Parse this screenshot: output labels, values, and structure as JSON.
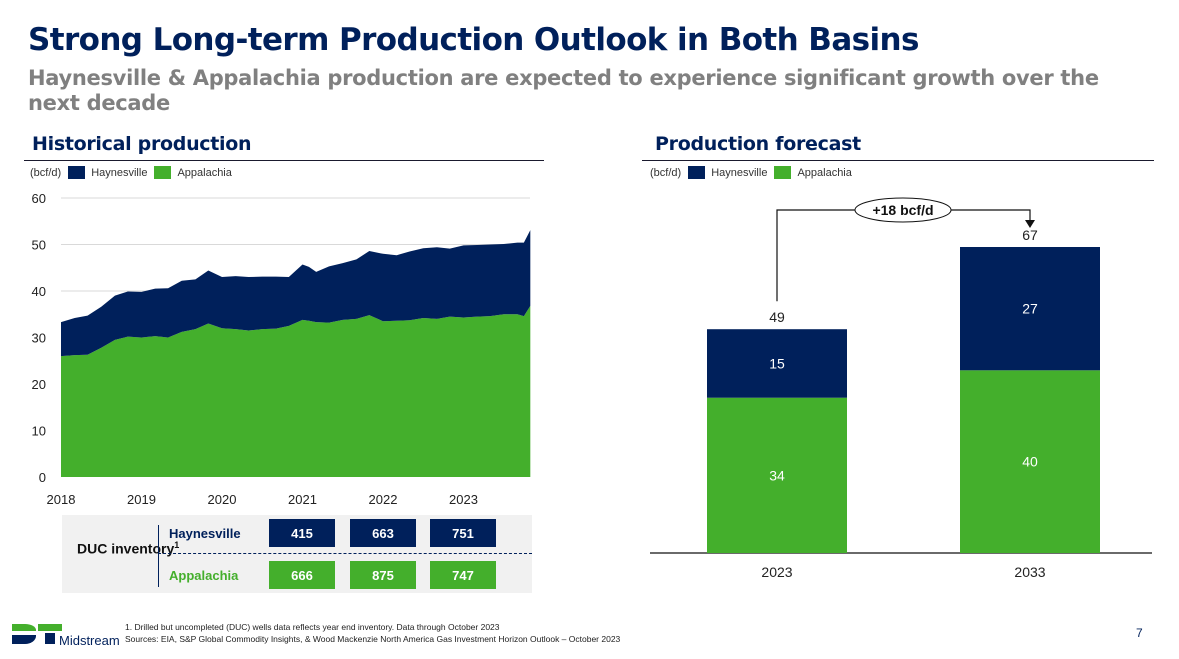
{
  "page": {
    "title": "Strong Long-term Production Outlook in Both Basins",
    "subtitle": "Haynesville & Appalachia production are expected to experience significant growth over the next decade",
    "page_number": "7"
  },
  "colors": {
    "haynesville": "#00205b",
    "appalachia": "#44af2c",
    "title": "#00205b",
    "subtitle": "#808080"
  },
  "legend": {
    "unit": "(bcf/d)",
    "items": [
      {
        "name": "Haynesville",
        "color": "#00205b"
      },
      {
        "name": "Appalachia",
        "color": "#44af2c"
      }
    ]
  },
  "chart_data": [
    {
      "type": "area",
      "title": "Historical production",
      "unit": "(bcf/d)",
      "stacked": true,
      "xlabel": "",
      "ylabel": "",
      "ylim": [
        0,
        60
      ],
      "yticks": [
        0,
        10,
        20,
        30,
        40,
        50,
        60
      ],
      "xticks": [
        "2018",
        "2019",
        "2020",
        "2021",
        "2022",
        "2023"
      ],
      "grid": true,
      "legend_position": "top-left",
      "x": [
        2018.0,
        2018.17,
        2018.33,
        2018.5,
        2018.67,
        2018.83,
        2019.0,
        2019.17,
        2019.33,
        2019.5,
        2019.67,
        2019.83,
        2020.0,
        2020.17,
        2020.33,
        2020.5,
        2020.67,
        2020.83,
        2021.0,
        2021.08,
        2021.17,
        2021.33,
        2021.5,
        2021.67,
        2021.83,
        2022.0,
        2022.17,
        2022.33,
        2022.5,
        2022.67,
        2022.83,
        2023.0,
        2023.17,
        2023.33,
        2023.5,
        2023.67,
        2023.75,
        2023.83
      ],
      "series": [
        {
          "name": "Appalachia",
          "values": [
            26.0,
            26.2,
            26.3,
            27.8,
            29.5,
            30.2,
            30.0,
            30.3,
            30.0,
            31.2,
            31.8,
            33.0,
            32.0,
            31.8,
            31.5,
            31.8,
            31.9,
            32.5,
            33.8,
            33.6,
            33.3,
            33.2,
            33.8,
            34.0,
            34.8,
            33.5,
            33.6,
            33.7,
            34.2,
            34.0,
            34.5,
            34.3,
            34.5,
            34.6,
            35.0,
            35.0,
            34.6,
            36.8
          ]
        },
        {
          "name": "Haynesville",
          "values": [
            7.3,
            8.0,
            8.4,
            8.8,
            9.5,
            9.7,
            9.8,
            10.2,
            10.6,
            11.0,
            10.7,
            11.4,
            11.0,
            11.4,
            11.5,
            11.3,
            11.2,
            10.5,
            11.9,
            11.6,
            10.8,
            12.1,
            12.2,
            12.8,
            13.8,
            14.5,
            14.1,
            14.8,
            15.0,
            15.4,
            14.6,
            15.5,
            15.4,
            15.4,
            15.1,
            15.4,
            15.8,
            16.3
          ]
        }
      ]
    },
    {
      "type": "bar",
      "title": "Production forecast",
      "unit": "(bcf/d)",
      "stacked": true,
      "categories": [
        "2023",
        "2033"
      ],
      "series": [
        {
          "name": "Appalachia",
          "values": [
            34,
            40
          ]
        },
        {
          "name": "Haynesville",
          "values": [
            15,
            27
          ]
        }
      ],
      "totals": [
        49,
        67
      ],
      "annotation": "+18 bcf/d",
      "ylim": [
        0,
        67
      ],
      "grid": false,
      "legend_position": "top-left"
    }
  ],
  "duc_inventory": {
    "label": "DUC inventory",
    "footnote_mark": "1",
    "rows": [
      {
        "name": "Haynesville",
        "values": [
          "415",
          "663",
          "751"
        ]
      },
      {
        "name": "Appalachia",
        "values": [
          "666",
          "875",
          "747"
        ]
      }
    ]
  },
  "footer": {
    "note": "1. Drilled but uncompleted (DUC) wells data reflects year end inventory. Data through October 2023",
    "sources": "Sources: EIA, S&P Global Commodity Insights, & Wood Mackenzie North America Gas Investment Horizon Outlook – October 2023"
  },
  "logo": {
    "mark": "DT",
    "text": "Midstream"
  }
}
